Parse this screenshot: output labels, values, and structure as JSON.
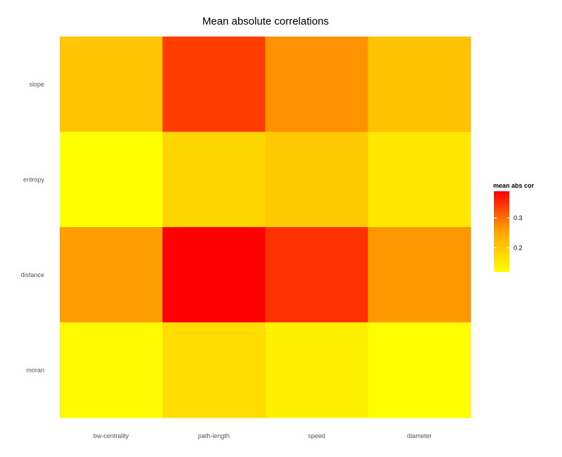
{
  "chart_data": {
    "type": "heatmap",
    "title": "Mean absolute correlations",
    "xlabel": "",
    "ylabel": "",
    "x_categories": [
      "bw-centrality",
      "path-length",
      "speed",
      "diameter"
    ],
    "y_categories": [
      "slope",
      "entropy",
      "distance",
      "moran"
    ],
    "values": [
      [
        0.205,
        0.34,
        0.27,
        0.21
      ],
      [
        0.118,
        0.18,
        0.2,
        0.155
      ],
      [
        0.26,
        0.39,
        0.35,
        0.265
      ],
      [
        0.125,
        0.17,
        0.14,
        0.12
      ]
    ],
    "legend": {
      "title": "mean abs cor",
      "ticks": [
        0.2,
        0.3
      ],
      "tick_labels": [
        "0.2",
        "0.3"
      ],
      "range": [
        0.118,
        0.39
      ],
      "low_color": "#ffff00",
      "mid_color": "#ffa500",
      "high_color": "#ff0000",
      "placement": "right"
    },
    "grid": false
  }
}
